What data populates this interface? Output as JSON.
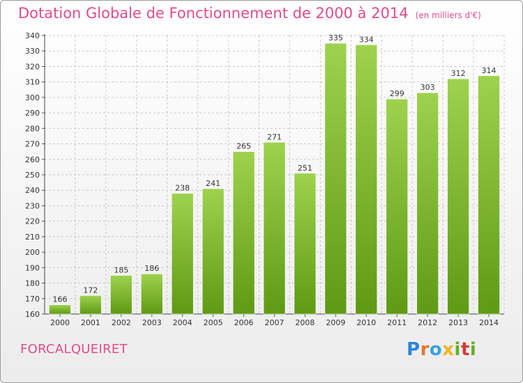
{
  "title": "Dotation Globale de Fonctionnement de 2000 à 2014",
  "unit": "(en milliers d'€)",
  "commune": "FORCALQUEIRET",
  "logo": {
    "letters": [
      "P",
      "r",
      "o",
      "x",
      "i",
      "t",
      "i"
    ]
  },
  "colors": {
    "bar_top": "#9ed24e",
    "bar_bottom": "#5f9a14",
    "title": "#e04c8c",
    "grid": "#c8c8c8"
  },
  "chart_data": {
    "type": "bar",
    "title": "Dotation Globale de Fonctionnement de 2000 à 2014",
    "subtitle": "(en milliers d'€)",
    "categories": [
      "2000",
      "2001",
      "2002",
      "2003",
      "2004",
      "2005",
      "2006",
      "2007",
      "2008",
      "2009",
      "2010",
      "2011",
      "2012",
      "2013",
      "2014"
    ],
    "values": [
      166,
      172,
      185,
      186,
      238,
      241,
      265,
      271,
      251,
      335,
      334,
      299,
      303,
      312,
      314
    ],
    "ylim": [
      160,
      340
    ],
    "ytick_step": 10,
    "grid": true,
    "xlabel": "",
    "ylabel": ""
  }
}
